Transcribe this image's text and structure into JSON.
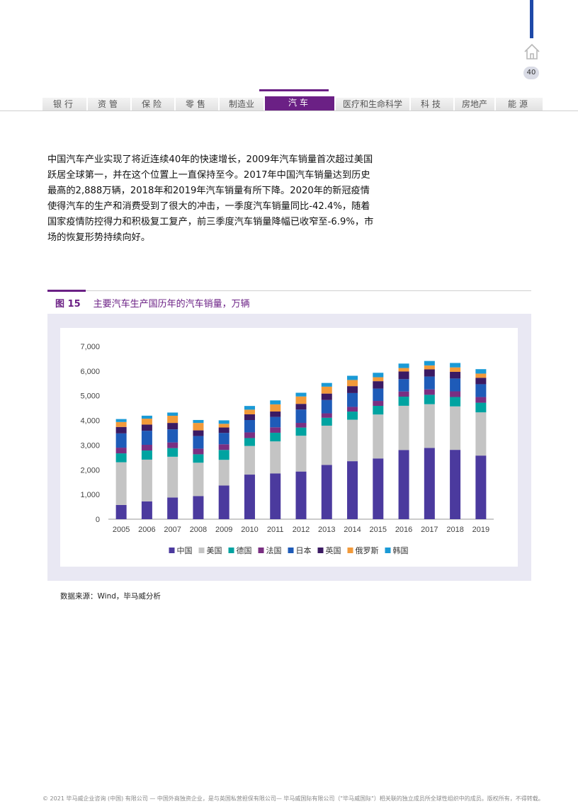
{
  "header": {
    "page_number": "40",
    "tabs": [
      "银行",
      "资管",
      "保险",
      "零售",
      "制造业",
      "汽车",
      "医疗和生命科学",
      "科技",
      "房地产",
      "能源"
    ],
    "active_tab": "汽车"
  },
  "intro_text": "中国汽车产业实现了将近连续40年的快速增长，2009年汽车销量首次超过美国跃居全球第一，并在这个位置上一直保持至今。2017年中国汽车销量达到历史最高的2,888万辆，2018年和2019年汽车销量有所下降。2020年的新冠疫情使得汽车的生产和消费受到了很大的冲击，一季度汽车销量同比-42.4%，随着国家疫情防控得力和积极复工复产，前三季度汽车销量降幅已收窄至-6.9%，市场的恢复形势持续向好。",
  "figure": {
    "number": "图 15",
    "title": "主要汽车生产国历年的汽车销量，万辆",
    "source": "数据来源：Wind，毕马威分析"
  },
  "chart_data": {
    "type": "bar",
    "stacked": true,
    "categories": [
      "2005",
      "2006",
      "2007",
      "2008",
      "2009",
      "2010",
      "2011",
      "2012",
      "2013",
      "2014",
      "2015",
      "2016",
      "2017",
      "2018",
      "2019"
    ],
    "ylim": [
      0,
      7000
    ],
    "yticks": [
      "0",
      "1,000",
      "2,000",
      "3,000",
      "4,000",
      "5,000",
      "6,000",
      "7,000"
    ],
    "legend_position": "bottom",
    "series": [
      {
        "name": "中国",
        "color": "#4b3a9e",
        "values": [
          576,
          722,
          879,
          938,
          1364,
          1806,
          1851,
          1931,
          2198,
          2349,
          2460,
          2803,
          2888,
          2808,
          2577
        ]
      },
      {
        "name": "美国",
        "color": "#c4c4c4",
        "values": [
          1730,
          1690,
          1650,
          1350,
          1040,
          1160,
          1300,
          1450,
          1590,
          1680,
          1780,
          1790,
          1770,
          1760,
          1750
        ]
      },
      {
        "name": "德国",
        "color": "#00a3a1",
        "values": [
          360,
          370,
          350,
          340,
          400,
          320,
          350,
          330,
          320,
          330,
          350,
          370,
          380,
          380,
          390
        ]
      },
      {
        "name": "法国",
        "color": "#7a2f82",
        "values": [
          230,
          230,
          230,
          230,
          230,
          230,
          220,
          190,
          180,
          190,
          200,
          210,
          220,
          230,
          230
        ]
      },
      {
        "name": "日本",
        "color": "#1e5bb8",
        "values": [
          580,
          570,
          530,
          510,
          460,
          500,
          420,
          540,
          540,
          560,
          500,
          500,
          520,
          520,
          520
        ]
      },
      {
        "name": "英国",
        "color": "#3b1a63",
        "values": [
          260,
          250,
          260,
          230,
          220,
          230,
          220,
          230,
          260,
          280,
          300,
          310,
          290,
          270,
          260
        ]
      },
      {
        "name": "俄罗斯",
        "color": "#f29a3a",
        "values": [
          200,
          240,
          290,
          300,
          150,
          190,
          290,
          300,
          280,
          250,
          160,
          140,
          160,
          180,
          170
        ]
      },
      {
        "name": "韩国",
        "color": "#1a9ad6",
        "values": [
          120,
          120,
          130,
          120,
          140,
          150,
          160,
          150,
          150,
          170,
          180,
          180,
          180,
          180,
          180
        ]
      }
    ]
  },
  "footer": "© 2021 毕马威企业咨询 (中国) 有限公司 — 中国外商独资企业，是与英国私营担保有限公司— 毕马威国际有限公司（\"毕马威国际\"）相关联的独立成员所全球性组织中的成员。版权所有，不得转载。"
}
